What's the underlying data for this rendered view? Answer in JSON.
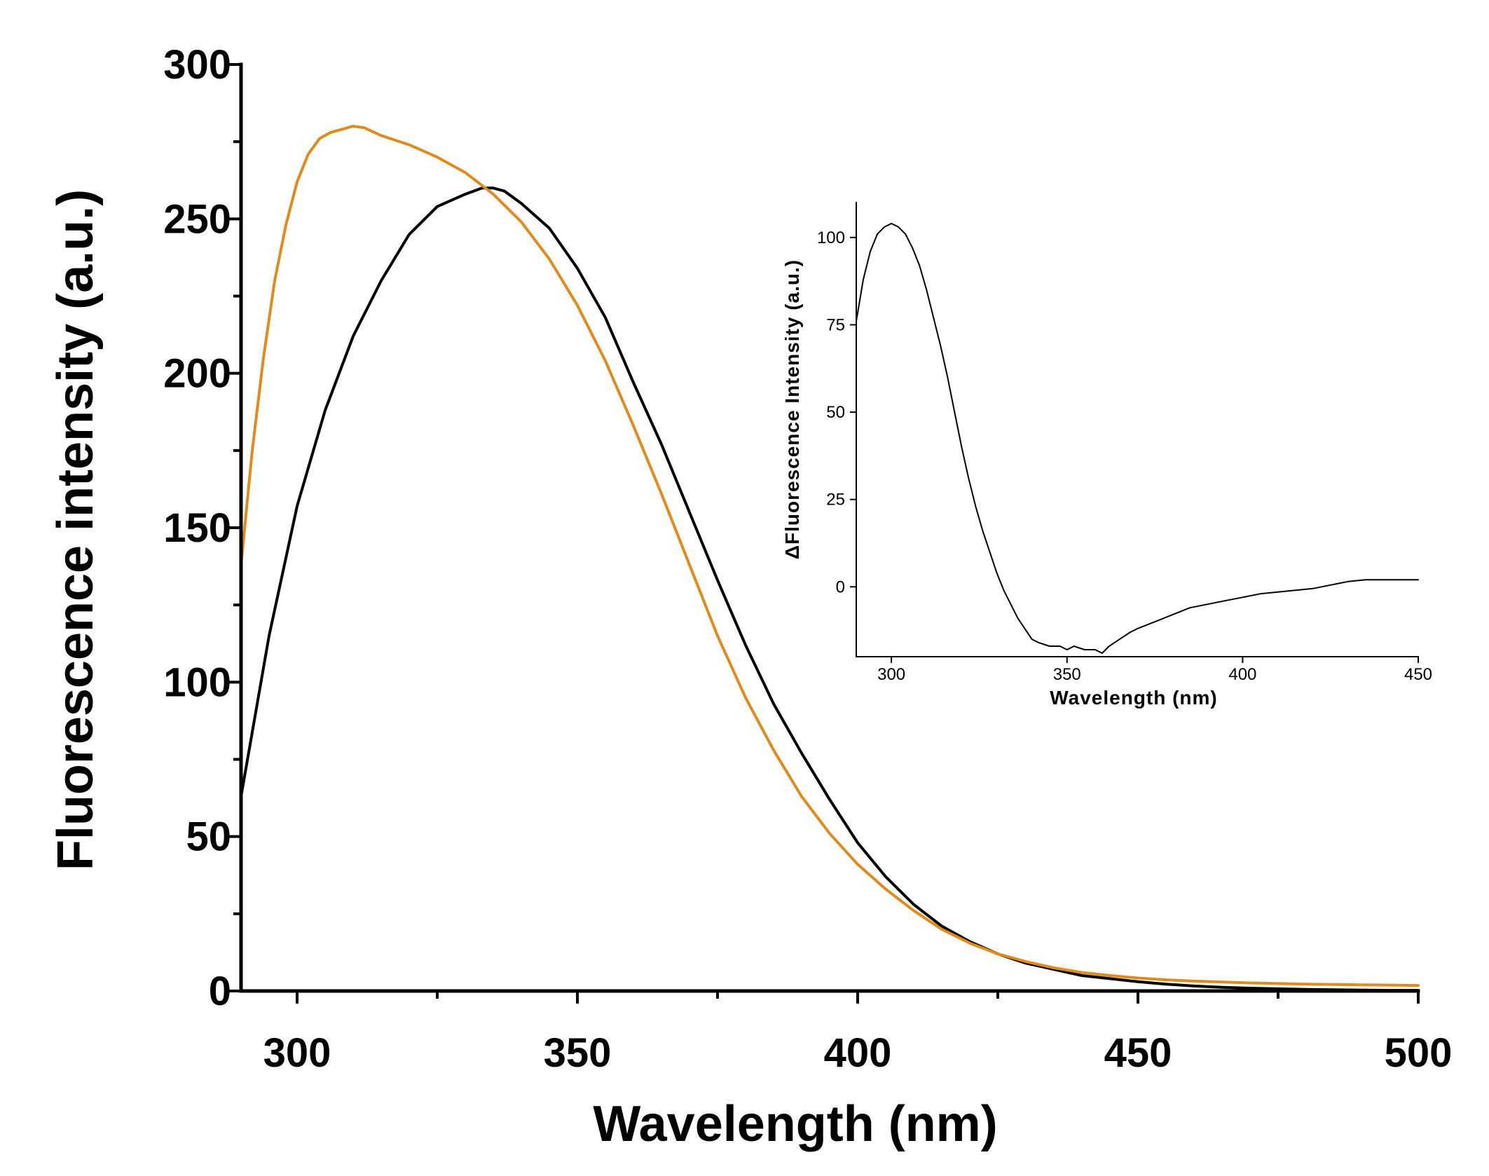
{
  "chart_data": [
    {
      "id": "main",
      "type": "line",
      "title": "",
      "xlabel": "Wavelength (nm)",
      "ylabel": "Fluorescence intensity (a.u.)",
      "xlim": [
        290,
        500
      ],
      "ylim": [
        0,
        300
      ],
      "xticks": [
        300,
        350,
        400,
        450,
        500
      ],
      "xticks_minor": [
        325,
        375,
        425,
        475
      ],
      "yticks": [
        0,
        50,
        100,
        150,
        200,
        250,
        300
      ],
      "yticks_minor": [
        25,
        75,
        125,
        175,
        225,
        275
      ],
      "grid": false,
      "series": [
        {
          "name": "black",
          "color": "#000000",
          "x": [
            290,
            295,
            300,
            305,
            310,
            315,
            320,
            325,
            330,
            333,
            335,
            337,
            340,
            345,
            350,
            355,
            360,
            365,
            370,
            375,
            380,
            385,
            390,
            395,
            400,
            405,
            410,
            415,
            420,
            425,
            430,
            435,
            440,
            445,
            450,
            455,
            460,
            465,
            470,
            475,
            480,
            485,
            490,
            495,
            500
          ],
          "y": [
            63,
            115,
            157,
            188,
            212,
            230,
            245,
            254,
            258,
            260,
            260,
            259,
            255,
            247,
            234,
            218,
            197,
            177,
            155,
            133,
            112,
            93,
            77,
            62,
            48,
            37,
            28,
            21,
            16,
            12,
            9,
            7,
            5,
            4,
            3,
            2.2,
            1.6,
            1.2,
            0.9,
            0.7,
            0.5,
            0.4,
            0.3,
            0.2,
            0.2
          ]
        },
        {
          "name": "orange",
          "color": "#E38A1C",
          "x": [
            290,
            292,
            294,
            296,
            298,
            300,
            302,
            304,
            306,
            308,
            310,
            312,
            315,
            320,
            325,
            330,
            335,
            340,
            345,
            350,
            355,
            360,
            365,
            370,
            375,
            380,
            385,
            390,
            395,
            400,
            405,
            410,
            415,
            420,
            425,
            430,
            435,
            440,
            445,
            450,
            455,
            460,
            465,
            470,
            475,
            480,
            485,
            490,
            495,
            500
          ],
          "y": [
            138,
            175,
            205,
            230,
            248,
            262,
            271,
            276,
            278,
            279,
            280,
            279.5,
            277,
            274,
            270,
            265,
            258,
            249,
            237,
            222,
            204,
            183,
            161,
            138,
            115,
            95,
            78,
            63,
            51,
            41,
            33,
            26,
            20,
            15.5,
            12,
            9.5,
            7.5,
            6,
            5,
            4.2,
            3.6,
            3.2,
            2.9,
            2.6,
            2.4,
            2.2,
            2.1,
            2,
            1.9,
            1.8
          ]
        }
      ]
    },
    {
      "id": "inset",
      "type": "line",
      "title": "",
      "xlabel": "Wavelength (nm)",
      "ylabel": "ΔFluorescence Intensity (a.u.)",
      "xlim": [
        290,
        450
      ],
      "ylim": [
        -20,
        110
      ],
      "xticks": [
        300,
        350,
        400,
        450
      ],
      "yticks": [
        0,
        25,
        50,
        75,
        100
      ],
      "grid": false,
      "series": [
        {
          "name": "difference",
          "color": "#000000",
          "x": [
            290,
            292,
            294,
            296,
            298,
            300,
            302,
            304,
            306,
            308,
            310,
            312,
            314,
            316,
            318,
            320,
            322,
            324,
            326,
            328,
            330,
            332,
            334,
            336,
            338,
            340,
            342,
            345,
            348,
            350,
            352,
            355,
            358,
            360,
            362,
            365,
            368,
            370,
            375,
            380,
            385,
            390,
            395,
            400,
            405,
            410,
            415,
            420,
            425,
            430,
            435,
            440,
            445,
            450
          ],
          "y": [
            76,
            88,
            96,
            101,
            103,
            104,
            103,
            101,
            97,
            92,
            85,
            77,
            69,
            60,
            50,
            40,
            31,
            23,
            16,
            10,
            4,
            -1,
            -5,
            -9,
            -12,
            -15,
            -16,
            -17,
            -17,
            -18,
            -17,
            -18,
            -18,
            -19,
            -17,
            -15,
            -13,
            -12,
            -10,
            -8,
            -6,
            -5,
            -4,
            -3,
            -2,
            -1.5,
            -1,
            -0.5,
            0.5,
            1.5,
            2,
            2,
            2,
            2
          ]
        }
      ]
    }
  ]
}
